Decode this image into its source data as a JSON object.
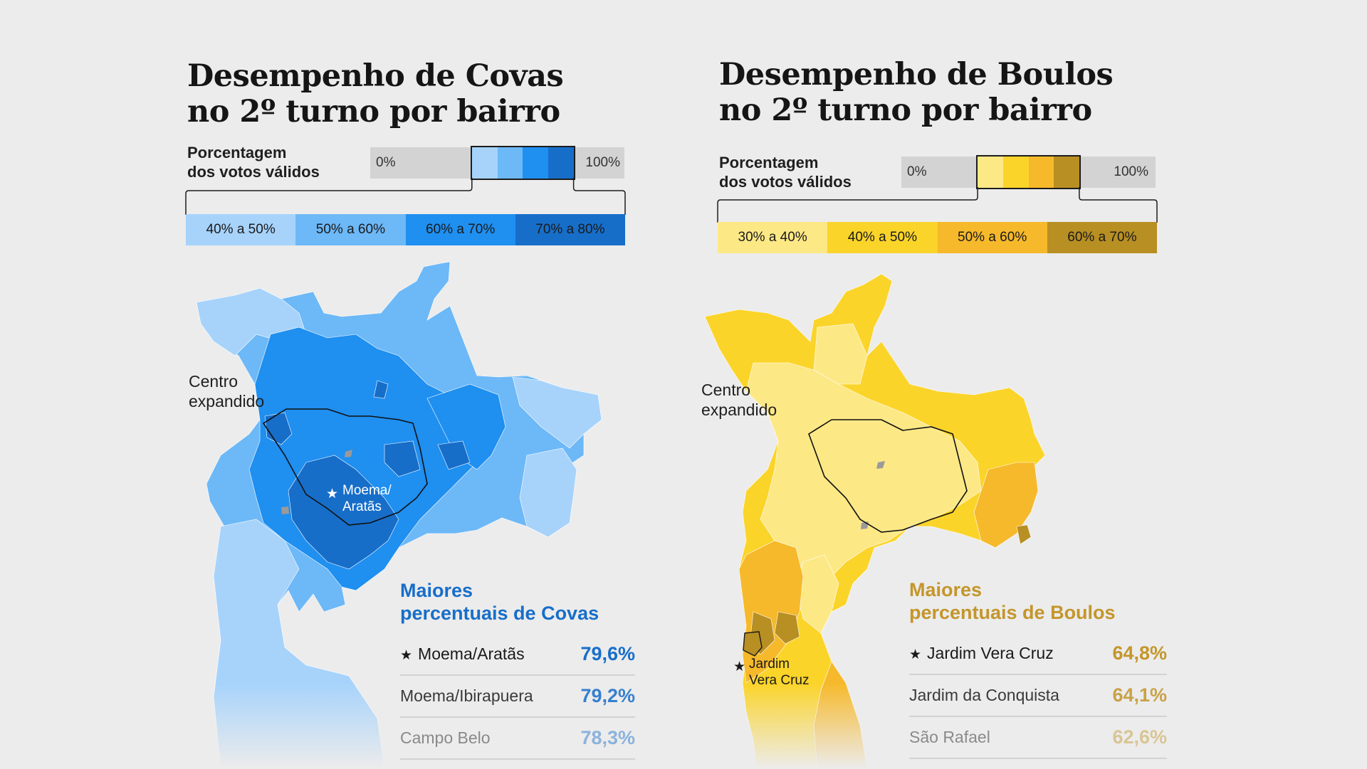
{
  "colors": {
    "background": "#ececec",
    "covas_palette": [
      "#a7d3fb",
      "#6db8f7",
      "#1f8ff0",
      "#176ec9"
    ],
    "covas_accent": "#176ec9",
    "boulos_palette": [
      "#fde886",
      "#fbd42a",
      "#f6b92b",
      "#b88f22"
    ],
    "boulos_accent": "#c4962b",
    "no_data": "#9a9a9a"
  },
  "covas": {
    "title_line1": "Desempenho de Covas",
    "title_line2": "no 2º turno por bairro",
    "legend_label_line1": "Porcentagem",
    "legend_label_line2": "dos votos válidos",
    "scale_min": "0%",
    "scale_max": "100%",
    "scale_range": [
      40,
      80
    ],
    "classes": [
      "40% a 50%",
      "50% a 60%",
      "60% a 70%",
      "70% a 80%"
    ],
    "map_label_line1": "Centro",
    "map_label_line2": "expandido",
    "star_label_line1": "Moema/",
    "star_label_line2": "Aratãs",
    "ranking_title_line1": "Maiores",
    "ranking_title_line2": "percentuais de Covas",
    "ranking": [
      {
        "name": "Moema/Aratãs",
        "value": "79,6%",
        "starred": true
      },
      {
        "name": "Moema/Ibirapuera",
        "value": "79,2%",
        "starred": false
      },
      {
        "name": "Campo Belo",
        "value": "78,3%",
        "starred": false
      }
    ]
  },
  "boulos": {
    "title_line1": "Desempenho de Boulos",
    "title_line2": "no 2º turno por bairro",
    "legend_label_line1": "Porcentagem",
    "legend_label_line2": "dos votos válidos",
    "scale_min": "0%",
    "scale_max": "100%",
    "scale_range": [
      30,
      70
    ],
    "classes": [
      "30% a 40%",
      "40% a 50%",
      "50% a 60%",
      "60% a 70%"
    ],
    "map_label_line1": "Centro",
    "map_label_line2": "expandido",
    "star_label_line1": "Jardim",
    "star_label_line2": "Vera Cruz",
    "ranking_title_line1": "Maiores",
    "ranking_title_line2": "percentuais de Boulos",
    "ranking": [
      {
        "name": "Jardim Vera Cruz",
        "value": "64,8%",
        "starred": true
      },
      {
        "name": "Jardim da Conquista",
        "value": "64,1%",
        "starred": false
      },
      {
        "name": "São Rafael",
        "value": "62,6%",
        "starred": false
      }
    ]
  }
}
